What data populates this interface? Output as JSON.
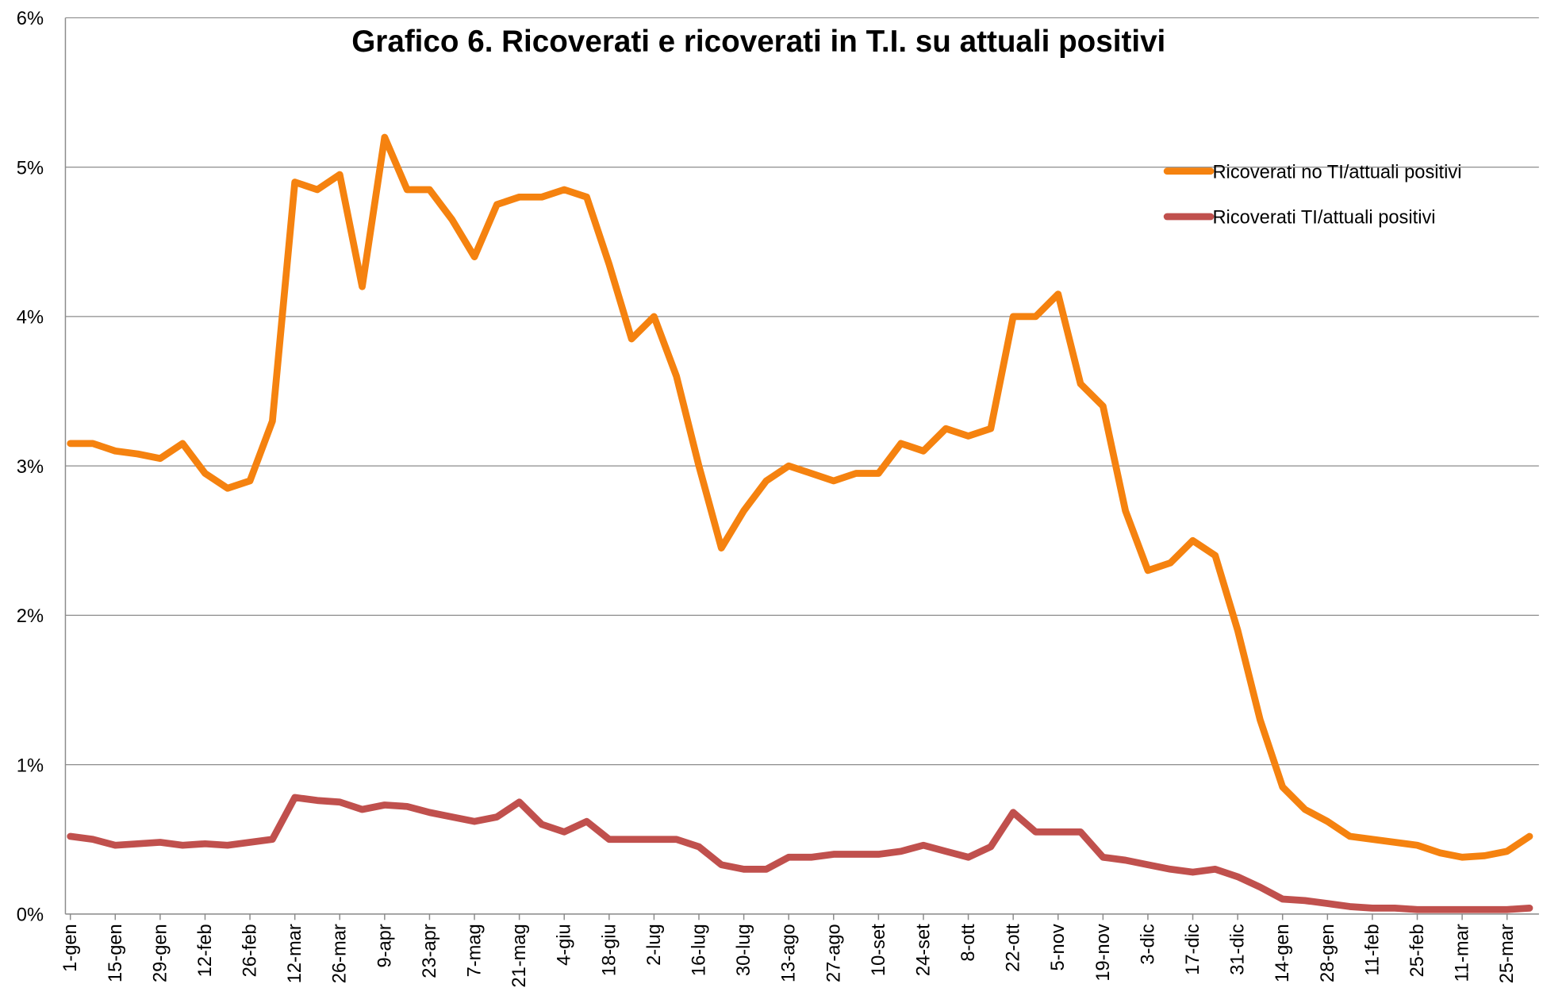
{
  "chart_data": {
    "type": "line",
    "title": "Grafico 6. Ricoverati e ricoverati in T.I. su attuali positivi",
    "categories": [
      "1-gen",
      null,
      "15-gen",
      null,
      "29-gen",
      null,
      "12-feb",
      null,
      "26-feb",
      null,
      "12-mar",
      null,
      "26-mar",
      null,
      "9-apr",
      null,
      "23-apr",
      null,
      "7-mag",
      null,
      "21-mag",
      null,
      "4-giu",
      null,
      "18-giu",
      null,
      "2-lug",
      null,
      "16-lug",
      null,
      "30-lug",
      null,
      "13-ago",
      null,
      "27-ago",
      null,
      "10-set",
      null,
      "24-set",
      null,
      "8-ott",
      null,
      "22-ott",
      null,
      "5-nov",
      null,
      "19-nov",
      null,
      "3-dic",
      null,
      "17-dic",
      null,
      "31-dic",
      null,
      "14-gen",
      null,
      "28-gen",
      null,
      "11-feb",
      null,
      "25-feb",
      null,
      "11-mar",
      null,
      "25-mar",
      null
    ],
    "series": [
      {
        "name": "Ricoverati no TI/attuali positivi",
        "color": "#f5820f",
        "values": [
          3.15,
          3.15,
          3.1,
          3.08,
          3.05,
          3.15,
          2.95,
          2.85,
          2.9,
          3.3,
          4.9,
          4.85,
          4.95,
          4.2,
          5.2,
          4.85,
          4.85,
          4.65,
          4.4,
          4.75,
          4.8,
          4.8,
          4.85,
          4.8,
          4.35,
          3.85,
          4.0,
          3.6,
          3.0,
          2.45,
          2.7,
          2.9,
          3.0,
          2.95,
          2.9,
          2.95,
          2.95,
          3.15,
          3.1,
          3.25,
          3.2,
          3.25,
          4.0,
          4.0,
          4.15,
          3.55,
          3.4,
          2.7,
          2.3,
          2.35,
          2.5,
          2.4,
          1.9,
          1.3,
          0.85,
          0.7,
          0.62,
          0.52,
          0.5,
          0.48,
          0.46,
          0.41,
          0.38,
          0.39,
          0.42,
          0.52
        ]
      },
      {
        "name": "Ricoverati TI/attuali positivi",
        "color": "#c0504d",
        "values": [
          0.52,
          0.5,
          0.46,
          0.47,
          0.48,
          0.46,
          0.47,
          0.46,
          0.48,
          0.5,
          0.78,
          0.76,
          0.75,
          0.7,
          0.73,
          0.72,
          0.68,
          0.65,
          0.62,
          0.65,
          0.75,
          0.6,
          0.55,
          0.62,
          0.5,
          0.5,
          0.5,
          0.5,
          0.45,
          0.33,
          0.3,
          0.3,
          0.38,
          0.38,
          0.4,
          0.4,
          0.4,
          0.42,
          0.46,
          0.42,
          0.38,
          0.45,
          0.68,
          0.55,
          0.55,
          0.55,
          0.38,
          0.36,
          0.33,
          0.3,
          0.28,
          0.3,
          0.25,
          0.18,
          0.1,
          0.09,
          0.07,
          0.05,
          0.04,
          0.04,
          0.03,
          0.03,
          0.03,
          0.03,
          0.03,
          0.04
        ]
      }
    ],
    "ylim": [
      0,
      6
    ],
    "yticks": [
      {
        "value": 0,
        "label": "0%"
      },
      {
        "value": 1,
        "label": "1%"
      },
      {
        "value": 2,
        "label": "2%"
      },
      {
        "value": 3,
        "label": "3%"
      },
      {
        "value": 4,
        "label": "4%"
      },
      {
        "value": 5,
        "label": "5%"
      },
      {
        "value": 6,
        "label": "6%"
      }
    ],
    "grid": true,
    "legend": "upper right"
  }
}
